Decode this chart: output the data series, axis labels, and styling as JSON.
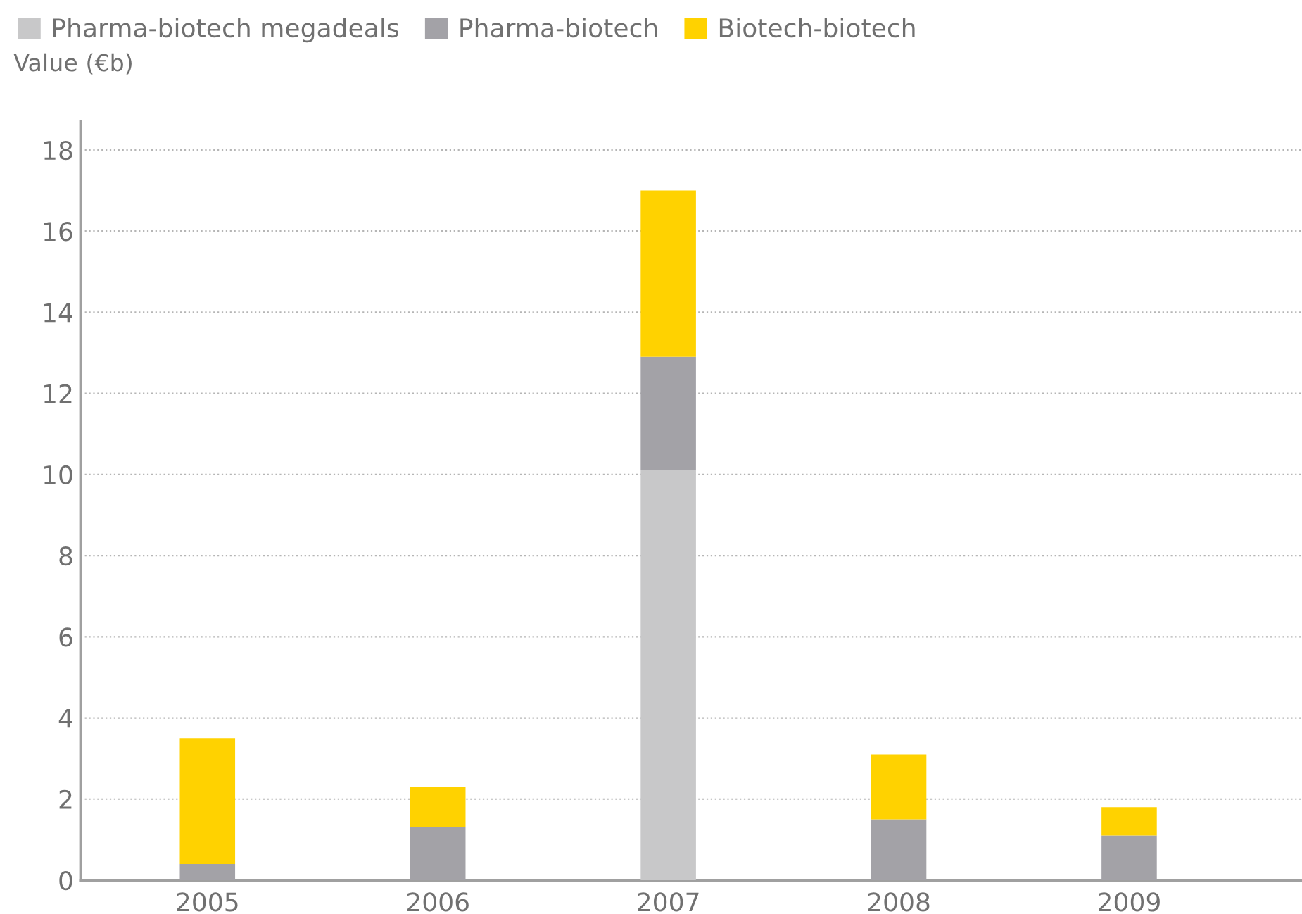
{
  "chart_data": {
    "type": "bar",
    "stacked": true,
    "ylabel": "Value (€b)",
    "categories": [
      "2005",
      "2006",
      "2007",
      "2008",
      "2009"
    ],
    "series": [
      {
        "name": "Pharma-biotech megadeals",
        "color": "#c8c8c9",
        "values": [
          0,
          0,
          10.1,
          0,
          0
        ]
      },
      {
        "name": "Pharma-biotech",
        "color": "#a3a2a7",
        "values": [
          0.4,
          1.3,
          2.8,
          1.5,
          1.1
        ]
      },
      {
        "name": "Biotech-biotech",
        "color": "#ffd200",
        "values": [
          3.1,
          1.0,
          4.1,
          1.6,
          0.7
        ]
      }
    ],
    "ylim": [
      0,
      18.7
    ],
    "yticks": [
      0,
      2,
      4,
      6,
      8,
      10,
      12,
      14,
      16,
      18
    ],
    "grid": "y",
    "legend": "top left"
  }
}
